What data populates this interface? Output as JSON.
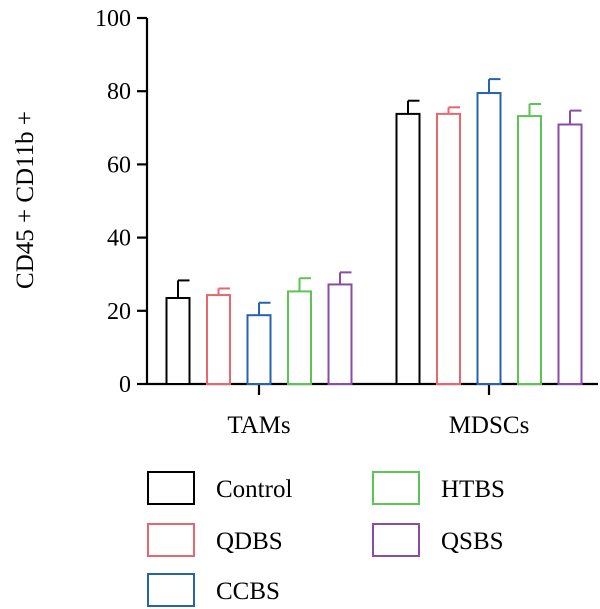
{
  "chart_data": {
    "type": "bar",
    "title": "",
    "xlabel": "",
    "ylabel": "CD45 + CD11b +",
    "ylim": [
      0,
      100
    ],
    "yticks": [
      0,
      20,
      40,
      60,
      80,
      100
    ],
    "categories": [
      "TAMs",
      "MDSCs"
    ],
    "series": [
      {
        "name": "Control",
        "color": "#000000",
        "values": [
          23.5,
          73.8
        ],
        "errors": [
          4.8,
          3.6
        ]
      },
      {
        "name": "QDBS",
        "color": "#e8666e",
        "values": [
          24.3,
          73.8
        ],
        "errors": [
          1.8,
          1.8
        ]
      },
      {
        "name": "CCBS",
        "color": "#2563b0",
        "values": [
          18.8,
          79.5
        ],
        "errors": [
          3.4,
          3.8
        ]
      },
      {
        "name": "HTBS",
        "color": "#5dc352",
        "values": [
          25.3,
          73.2
        ],
        "errors": [
          3.6,
          3.3
        ]
      },
      {
        "name": "QSBS",
        "color": "#8b4ba6",
        "values": [
          27.2,
          70.9
        ],
        "errors": [
          3.3,
          3.8
        ]
      }
    ],
    "legend_position": "bottom",
    "grid": false
  }
}
